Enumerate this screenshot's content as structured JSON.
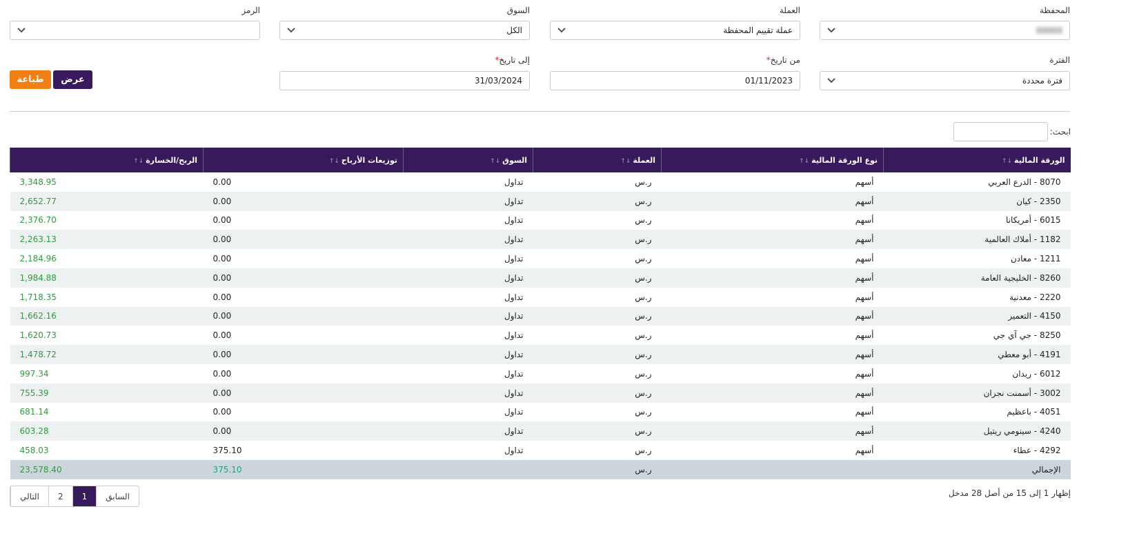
{
  "filters": {
    "portfolio": {
      "label": "المحفظة"
    },
    "currency": {
      "label": "العملة",
      "value": "عملة تقييم المحفظة"
    },
    "market": {
      "label": "السوق",
      "value": "الكل"
    },
    "symbol": {
      "label": "الرمز"
    },
    "period": {
      "label": "الفترة",
      "value": "فترة محددة"
    },
    "from_date": {
      "label": "من تاريخ",
      "required": "*",
      "value": "01/11/2023"
    },
    "to_date": {
      "label": "إلى تاريخ",
      "required": "*",
      "value": "31/03/2024"
    }
  },
  "buttons": {
    "show": "عرض",
    "print": "طباعة"
  },
  "search": {
    "label": "ابحث:"
  },
  "table": {
    "headers": [
      "الورقة المالية",
      "نوع الورقة المالية",
      "العملة",
      "السوق",
      "توزيعات الأرباح",
      "الربح/الخسارة"
    ],
    "rows": [
      [
        "8070 - الدرع العربي",
        "أسهم",
        "ر.س",
        "تداول",
        "0.00",
        "3,348.95"
      ],
      [
        "2350 - كيان",
        "أسهم",
        "ر.س",
        "تداول",
        "0.00",
        "2,652.77"
      ],
      [
        "6015 - أمريكانا",
        "أسهم",
        "ر.س",
        "تداول",
        "0.00",
        "2,376.70"
      ],
      [
        "1182 - أملاك العالمية",
        "أسهم",
        "ر.س",
        "تداول",
        "0.00",
        "2,263.13"
      ],
      [
        "1211 - معادن",
        "أسهم",
        "ر.س",
        "تداول",
        "0.00",
        "2,184.96"
      ],
      [
        "8260 - الخليجية العامة",
        "أسهم",
        "ر.س",
        "تداول",
        "0.00",
        "1,984.88"
      ],
      [
        "2220 - معدنية",
        "أسهم",
        "ر.س",
        "تداول",
        "0.00",
        "1,718.35"
      ],
      [
        "4150 - التعمير",
        "أسهم",
        "ر.س",
        "تداول",
        "0.00",
        "1,662.16"
      ],
      [
        "8250 - جي آي جي",
        "أسهم",
        "ر.س",
        "تداول",
        "0.00",
        "1,620.73"
      ],
      [
        "4191 - أبو معطي",
        "أسهم",
        "ر.س",
        "تداول",
        "0.00",
        "1,478.72"
      ],
      [
        "6012 - ريدان",
        "أسهم",
        "ر.س",
        "تداول",
        "0.00",
        "997.34"
      ],
      [
        "3002 - أسمنت نجران",
        "أسهم",
        "ر.س",
        "تداول",
        "0.00",
        "755.39"
      ],
      [
        "4051 - باعظيم",
        "أسهم",
        "ر.س",
        "تداول",
        "0.00",
        "681.14"
      ],
      [
        "4240 - سينومي ريتيل",
        "أسهم",
        "ر.س",
        "تداول",
        "0.00",
        "603.28"
      ],
      [
        "4292 - عطاء",
        "أسهم",
        "ر.س",
        "تداول",
        "375.10",
        "458.03"
      ]
    ],
    "total": {
      "label": "الإجمالي",
      "currency": "ر.س",
      "dividends": "375.10",
      "profit_loss": "23,578.40"
    }
  },
  "footer": {
    "info": "إظهار 1 إلى 15 من أصل 28 مدخل",
    "pagination": [
      "السابق",
      "1",
      "2",
      "التالي"
    ]
  }
}
